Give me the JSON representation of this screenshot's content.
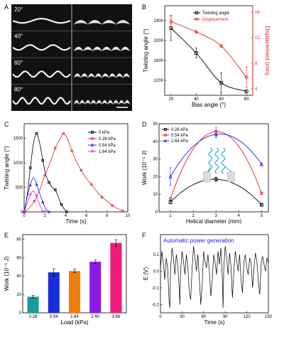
{
  "panel_a": {
    "letter": "A",
    "rows": [
      {
        "label": "20°"
      },
      {
        "label": "40°"
      },
      {
        "label": "60°"
      },
      {
        "label": "80°"
      }
    ]
  },
  "chart_data": [
    {
      "panel": "B",
      "type": "line",
      "x": [
        20,
        40,
        60,
        80
      ],
      "xlabel": "Bias angle (°)",
      "xlim": [
        15,
        85
      ],
      "xticks": [
        20,
        40,
        60,
        80
      ],
      "ylabel": "Twisting angle (°)",
      "ylim": [
        900,
        2700
      ],
      "yticks": [
        1200,
        1600,
        2000,
        2400
      ],
      "y2label": "Displacement (mm)",
      "y2lim": [
        3,
        17
      ],
      "y2ticks": [
        4,
        8,
        12,
        16
      ],
      "legend_position": "top-right",
      "series": [
        {
          "name": "Twisting angle",
          "axis": "left",
          "color": "#000000",
          "marker": "square",
          "values": [
            2250,
            1750,
            1150,
            980
          ],
          "errors": [
            250,
            100,
            200,
            30
          ]
        },
        {
          "name": "Displacement",
          "axis": "right",
          "color": "#e02020",
          "marker": "circle",
          "values": [
            14.5,
            12.9,
            10.7,
            5.8
          ],
          "errors": [
            1.0,
            0.2,
            0.2,
            1.6
          ]
        }
      ]
    },
    {
      "panel": "C",
      "type": "line",
      "xlabel": "Time (s)",
      "xlim": [
        0,
        10
      ],
      "xticks": [
        0,
        2,
        4,
        6,
        8,
        10
      ],
      "ylabel": "Twisting angle (°)",
      "ylim": [
        0,
        1800
      ],
      "yticks": [
        0,
        500,
        1000,
        1500
      ],
      "legend_position": "top-right",
      "series": [
        {
          "name": "0 kPa",
          "color": "#000000",
          "marker": "square",
          "x": [
            0,
            0.3,
            0.6,
            0.9,
            1.2,
            1.5,
            1.8,
            2.1,
            2.4,
            2.7,
            3.0,
            3.3,
            3.6,
            3.9,
            4.1
          ],
          "y": [
            0,
            350,
            900,
            1400,
            1600,
            1400,
            1050,
            750,
            600,
            500,
            450,
            300,
            150,
            50,
            0
          ]
        },
        {
          "name": "0.26 kPa",
          "color": "#e02020",
          "marker": "circle",
          "x": [
            0,
            0.5,
            1.0,
            1.5,
            2.0,
            2.5,
            3.0,
            3.5,
            3.8,
            4.2,
            4.6,
            5.0,
            5.5,
            6.0,
            6.5,
            7.0,
            7.5,
            8.0,
            8.5,
            9.0,
            9.5,
            9.8
          ],
          "y": [
            0,
            80,
            220,
            450,
            750,
            1000,
            1300,
            1500,
            1600,
            1480,
            1250,
            1050,
            850,
            680,
            560,
            420,
            300,
            220,
            130,
            70,
            20,
            0
          ]
        },
        {
          "name": "0.54 kPa",
          "color": "#1a1aff",
          "marker": "triangle",
          "x": [
            0,
            0.3,
            0.6,
            0.9,
            1.2,
            1.5,
            1.8,
            2.1,
            2.4
          ],
          "y": [
            0,
            300,
            550,
            700,
            560,
            380,
            200,
            60,
            0
          ]
        },
        {
          "name": "1.64 kPa",
          "color": "#e020e0",
          "marker": "triangle-down",
          "x": [
            0,
            0.3,
            0.6,
            0.9,
            1.2,
            1.5,
            1.8
          ],
          "y": [
            0,
            180,
            350,
            430,
            320,
            140,
            0
          ]
        }
      ]
    },
    {
      "panel": "D",
      "type": "line",
      "xlabel": "Helical diameter (mm)",
      "xlim": [
        0.5,
        5.3
      ],
      "xticks": [
        1,
        2,
        3,
        4,
        5
      ],
      "ylabel": "Work (10⁻⁵ J)",
      "ylim": [
        0,
        50
      ],
      "yticks": [
        0,
        10,
        20,
        30,
        40,
        50
      ],
      "legend_position": "top-left",
      "series": [
        {
          "name": "0.26 kPa",
          "color": "#000000",
          "marker": "square",
          "x": [
            1,
            3,
            5
          ],
          "y": [
            5.5,
            18.5,
            4
          ],
          "errors": [
            1.0,
            1.2,
            0.5
          ]
        },
        {
          "name": "0.54 kPa",
          "color": "#e02020",
          "marker": "circle",
          "x": [
            1,
            3,
            5
          ],
          "y": [
            7.5,
            45.5,
            10.5
          ],
          "errors": [
            0.5,
            2.5,
            0.5
          ]
        },
        {
          "name": "1.64 kPa",
          "color": "#1a1aff",
          "marker": "triangle",
          "x": [
            1,
            3,
            5
          ],
          "y": [
            20,
            44,
            27
          ],
          "errors": [
            5.0,
            2.0,
            0.8
          ]
        }
      ]
    },
    {
      "panel": "E",
      "type": "bar",
      "categories": [
        "0.26",
        "0.54",
        "1.64",
        "2.40",
        "3.86"
      ],
      "values": [
        17.5,
        44,
        45.5,
        55.5,
        76
      ],
      "errors": [
        1.5,
        4,
        2,
        2,
        3.5
      ],
      "colors": [
        "#1a9a9a",
        "#1a2ed8",
        "#f07d0a",
        "#8a1ae8",
        "#f01a7a"
      ],
      "xlabel": "Load (kPa)",
      "ylabel": "Work (10⁻⁵ J)",
      "ylim": [
        0,
        85
      ],
      "yticks": [
        0,
        20,
        40,
        60,
        80
      ]
    },
    {
      "panel": "F",
      "type": "line",
      "annotation": "Automatic power generation",
      "annotation_color": "#1a1aff",
      "xlabel": "Time (s)",
      "xlim": [
        0,
        150
      ],
      "xticks": [
        0,
        30,
        60,
        90,
        120,
        150
      ],
      "ylabel": "E (V)",
      "ylim": [
        -0.25,
        0.22
      ],
      "yticks": [
        -0.2,
        -0.1,
        0.0,
        0.1
      ],
      "series": [
        {
          "name": "",
          "color": "#000000",
          "x": [
            0,
            2,
            4,
            6,
            8,
            10,
            12,
            13,
            14,
            16,
            18,
            20,
            22,
            24,
            26,
            27,
            28,
            30,
            32,
            34,
            36,
            38,
            40,
            42,
            44,
            46,
            48,
            50,
            52,
            54,
            56,
            58,
            60,
            62,
            64,
            66,
            68,
            70,
            72,
            74,
            76,
            78,
            80,
            82,
            84,
            86,
            87,
            88,
            90,
            92,
            94,
            96,
            98,
            100,
            102,
            104,
            106,
            108,
            110,
            112,
            114,
            116,
            118,
            120,
            122,
            124,
            126,
            128,
            130,
            132,
            134,
            136,
            138,
            140,
            142,
            144,
            146,
            148,
            150
          ],
          "y": [
            0.02,
            0.12,
            0.05,
            -0.05,
            0.08,
            0.02,
            -0.18,
            -0.22,
            0.0,
            0.14,
            0.08,
            -0.02,
            0.1,
            0.04,
            -0.1,
            -0.2,
            0.0,
            0.12,
            0.06,
            -0.02,
            0.1,
            0.03,
            -0.12,
            -0.17,
            0.02,
            0.15,
            0.08,
            0.0,
            0.1,
            -0.04,
            -0.2,
            -0.08,
            0.12,
            0.06,
            0.02,
            0.1,
            0.0,
            -0.15,
            -0.05,
            0.1,
            0.05,
            -0.02,
            0.12,
            0.04,
            0.14,
            -0.04,
            -0.22,
            0.02,
            0.15,
            0.08,
            -0.02,
            0.11,
            0.03,
            -0.16,
            0.0,
            0.12,
            0.06,
            0.0,
            0.1,
            -0.05,
            -0.13,
            0.06,
            0.1,
            0.02,
            -0.02,
            0.08,
            0.05,
            -0.1,
            0.02,
            0.11,
            0.06,
            -0.06,
            -0.14,
            0.05,
            0.09,
            0.04,
            0.0,
            0.08,
            0.05
          ]
        }
      ]
    }
  ]
}
